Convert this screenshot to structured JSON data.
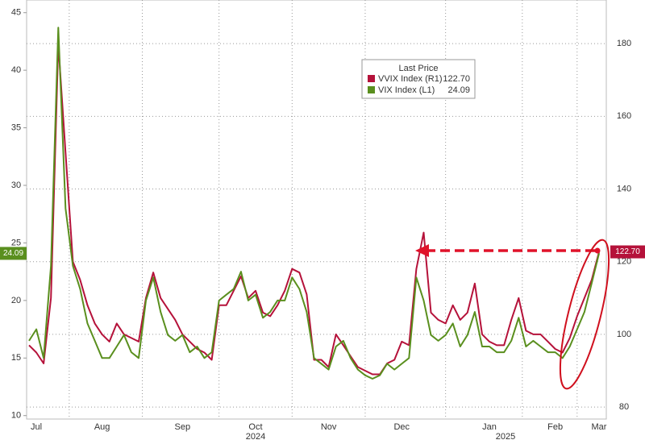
{
  "chart_data": {
    "type": "line",
    "legend_title": "Last Price",
    "categories": [
      null,
      "Jul",
      null,
      null,
      null,
      null,
      null,
      null,
      null,
      null,
      "Aug",
      null,
      null,
      null,
      null,
      null,
      null,
      null,
      null,
      null,
      null,
      "Sep",
      null,
      null,
      null,
      null,
      null,
      null,
      null,
      null,
      null,
      "Oct",
      null,
      null,
      null,
      null,
      null,
      null,
      null,
      null,
      null,
      "Nov",
      null,
      null,
      null,
      null,
      null,
      null,
      null,
      null,
      null,
      "Dec",
      null,
      null,
      null,
      null,
      null,
      null,
      null,
      null,
      null,
      null,
      null,
      "Jan",
      null,
      null,
      null,
      null,
      null,
      null,
      null,
      null,
      "Feb",
      null,
      null,
      null,
      null,
      null,
      "Mar"
    ],
    "year_labels": [
      "2024",
      "2025"
    ],
    "series": [
      {
        "name": "VVIX Index  (R1)",
        "color": "#b5123a",
        "axis": "y2",
        "last_label": "122.70",
        "values": [
          97,
          95,
          92,
          110,
          180,
          150,
          120,
          115,
          108,
          103,
          100,
          98,
          103,
          100,
          99,
          98,
          110,
          117,
          110,
          107,
          104,
          100,
          98,
          96,
          95,
          93,
          108,
          108,
          112,
          116,
          110,
          112,
          106,
          105,
          108,
          112,
          118,
          117,
          111,
          93,
          93,
          91,
          100,
          97,
          94,
          91,
          90,
          89,
          89,
          92,
          93,
          98,
          97,
          118,
          128,
          106,
          104,
          103,
          108,
          104,
          106,
          114,
          100,
          98,
          97,
          97,
          104,
          110,
          101,
          100,
          100,
          98,
          96,
          95,
          99,
          105,
          110,
          115,
          122.7
        ]
      },
      {
        "name": "VIX Index  (L1)",
        "color": "#5a8f1e",
        "axis": "y",
        "last_label": "24.09",
        "values": [
          16.5,
          17.5,
          15,
          23,
          43.7,
          28,
          23,
          21,
          18,
          16.5,
          15,
          15,
          16,
          17,
          15.5,
          15,
          20,
          22,
          19,
          17,
          16.5,
          17,
          15.5,
          16,
          15,
          15.5,
          20,
          20.5,
          21,
          22.5,
          20,
          20.5,
          18.5,
          19,
          20,
          20,
          22,
          21,
          19,
          15,
          14.5,
          14,
          16,
          16.5,
          15,
          14,
          13.5,
          13.2,
          13.5,
          14.5,
          14,
          14.5,
          15,
          22,
          20,
          17,
          16.5,
          17,
          18,
          16,
          17,
          19,
          16,
          16,
          15.5,
          15.5,
          16.5,
          18.5,
          16,
          16.5,
          16,
          15.5,
          15.5,
          15,
          16,
          17.5,
          19,
          21.5,
          24.09
        ]
      }
    ],
    "ylim": [
      9.7,
      46.1
    ],
    "yticks": [
      10,
      15,
      20,
      25,
      30,
      35,
      40,
      45
    ],
    "y2lim": [
      76.7,
      192
    ],
    "y2ticks": [
      80,
      100,
      120,
      140,
      160,
      180
    ],
    "grid": true
  }
}
